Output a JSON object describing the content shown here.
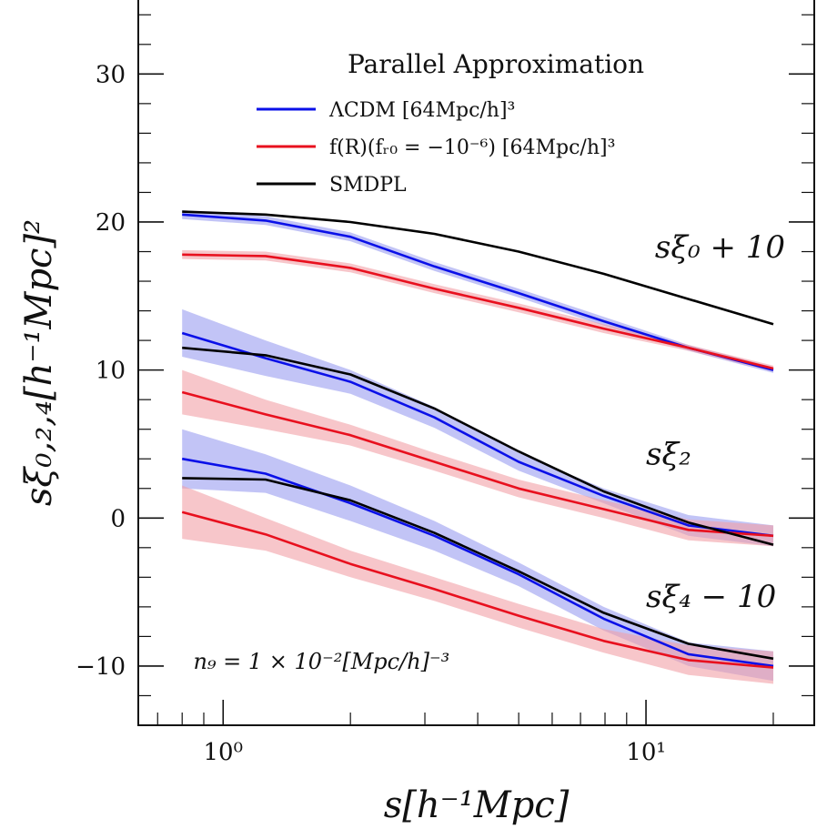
{
  "chart_data": {
    "type": "line",
    "title": "",
    "xlabel": "s[h⁻¹Mpc]",
    "ylabel": "sξ₀,₂,₄[h⁻¹Mpc]²",
    "xscale": "log",
    "xlim": [
      0.63,
      25
    ],
    "ylim": [
      -14,
      35
    ],
    "x_ticks": [
      {
        "value": 1,
        "label": "10⁰"
      },
      {
        "value": 10,
        "label": "10¹"
      }
    ],
    "y_ticks": [
      {
        "value": -10,
        "label": "−10"
      },
      {
        "value": 0,
        "label": "0"
      },
      {
        "value": 10,
        "label": "10"
      },
      {
        "value": 20,
        "label": "20"
      },
      {
        "value": 30,
        "label": "30"
      }
    ],
    "grid": false,
    "legend": {
      "title": "Parallel Approximation",
      "position": "top-right",
      "entries": [
        {
          "label": "ΛCDM [64Mpc/h]³",
          "color": "#0a10e8"
        },
        {
          "label": "f(R)(fᵣ₀ = −10⁻⁶) [64Mpc/h]³",
          "color": "#e8101e"
        },
        {
          "label": "SMDPL",
          "color": "#000000"
        }
      ]
    },
    "annotations": [
      {
        "text": "sξ₀ + 10",
        "x": 10.5,
        "y": 17.6
      },
      {
        "text": "sξ₂",
        "x": 10.0,
        "y": 3.6
      },
      {
        "text": "sξ₄ − 10",
        "x": 10.0,
        "y": -6.0
      },
      {
        "text": "n₉ = 1 × 10⁻²[Mpc/h]⁻³",
        "x": 0.85,
        "y": -10.2
      }
    ],
    "x": [
      0.8,
      1.26,
      2.0,
      3.16,
      5.0,
      7.94,
      12.6,
      20.0
    ],
    "series": [
      {
        "group": "monopole",
        "model": "LCDM",
        "color": "#0a10e8",
        "band_color": "#9a9cf0",
        "values": [
          20.5,
          20.1,
          19.0,
          17.0,
          15.2,
          13.3,
          11.5,
          10.0
        ],
        "lower": [
          20.2,
          19.8,
          18.7,
          16.7,
          14.9,
          13.0,
          11.3,
          9.8
        ],
        "upper": [
          20.8,
          20.4,
          19.3,
          17.3,
          15.5,
          13.6,
          11.7,
          10.2
        ]
      },
      {
        "group": "monopole",
        "model": "fR",
        "color": "#e8101e",
        "band_color": "#f2a0a6",
        "values": [
          17.8,
          17.7,
          16.9,
          15.5,
          14.2,
          12.8,
          11.5,
          10.1
        ],
        "lower": [
          17.5,
          17.4,
          16.6,
          15.2,
          13.9,
          12.5,
          11.3,
          9.9
        ],
        "upper": [
          18.1,
          18.0,
          17.2,
          15.8,
          14.5,
          13.1,
          11.7,
          10.3
        ]
      },
      {
        "group": "monopole",
        "model": "SMDPL",
        "color": "#000000",
        "values": [
          20.7,
          20.5,
          20.0,
          19.2,
          18.0,
          16.5,
          14.8,
          13.1
        ]
      },
      {
        "group": "quadrupole",
        "model": "LCDM",
        "color": "#0a10e8",
        "band_color": "#9a9cf0",
        "values": [
          12.5,
          10.8,
          9.2,
          6.8,
          3.8,
          1.5,
          -0.5,
          -1.2
        ],
        "lower": [
          10.9,
          9.6,
          8.4,
          6.1,
          3.2,
          1.0,
          -1.2,
          -1.9
        ],
        "upper": [
          14.1,
          12.0,
          10.0,
          7.5,
          4.4,
          2.0,
          0.2,
          -0.5
        ]
      },
      {
        "group": "quadrupole",
        "model": "fR",
        "color": "#e8101e",
        "band_color": "#f2a0a6",
        "values": [
          8.5,
          7.0,
          5.6,
          3.8,
          2.0,
          0.6,
          -0.8,
          -1.2
        ],
        "lower": [
          7.0,
          6.0,
          4.9,
          3.2,
          1.4,
          0.0,
          -1.5,
          -1.9
        ],
        "upper": [
          10.0,
          8.0,
          6.3,
          4.4,
          2.6,
          1.2,
          -0.1,
          -0.5
        ]
      },
      {
        "group": "quadrupole",
        "model": "SMDPL",
        "color": "#000000",
        "values": [
          11.5,
          11.0,
          9.7,
          7.4,
          4.5,
          1.8,
          -0.3,
          -1.8
        ]
      },
      {
        "group": "hexadecapole",
        "model": "LCDM",
        "color": "#0a10e8",
        "band_color": "#9a9cf0",
        "values": [
          4.0,
          3.0,
          1.0,
          -1.2,
          -3.8,
          -6.8,
          -9.2,
          -10.0
        ],
        "lower": [
          2.0,
          1.7,
          -0.2,
          -2.2,
          -4.6,
          -7.6,
          -10.0,
          -11.0
        ],
        "upper": [
          6.0,
          4.3,
          2.2,
          -0.2,
          -3.0,
          -6.0,
          -8.4,
          -9.0
        ]
      },
      {
        "group": "hexadecapole",
        "model": "fR",
        "color": "#e8101e",
        "band_color": "#f2a0a6",
        "values": [
          0.4,
          -1.1,
          -3.1,
          -4.8,
          -6.6,
          -8.3,
          -9.6,
          -10.1
        ],
        "lower": [
          -1.4,
          -2.2,
          -4.0,
          -5.6,
          -7.4,
          -9.1,
          -10.6,
          -11.2
        ],
        "upper": [
          2.2,
          0.0,
          -2.2,
          -4.0,
          -5.8,
          -7.5,
          -8.6,
          -9.0
        ]
      },
      {
        "group": "hexadecapole",
        "model": "SMDPL",
        "color": "#000000",
        "values": [
          2.7,
          2.6,
          1.2,
          -1.0,
          -3.6,
          -6.4,
          -8.5,
          -9.5
        ]
      }
    ]
  }
}
